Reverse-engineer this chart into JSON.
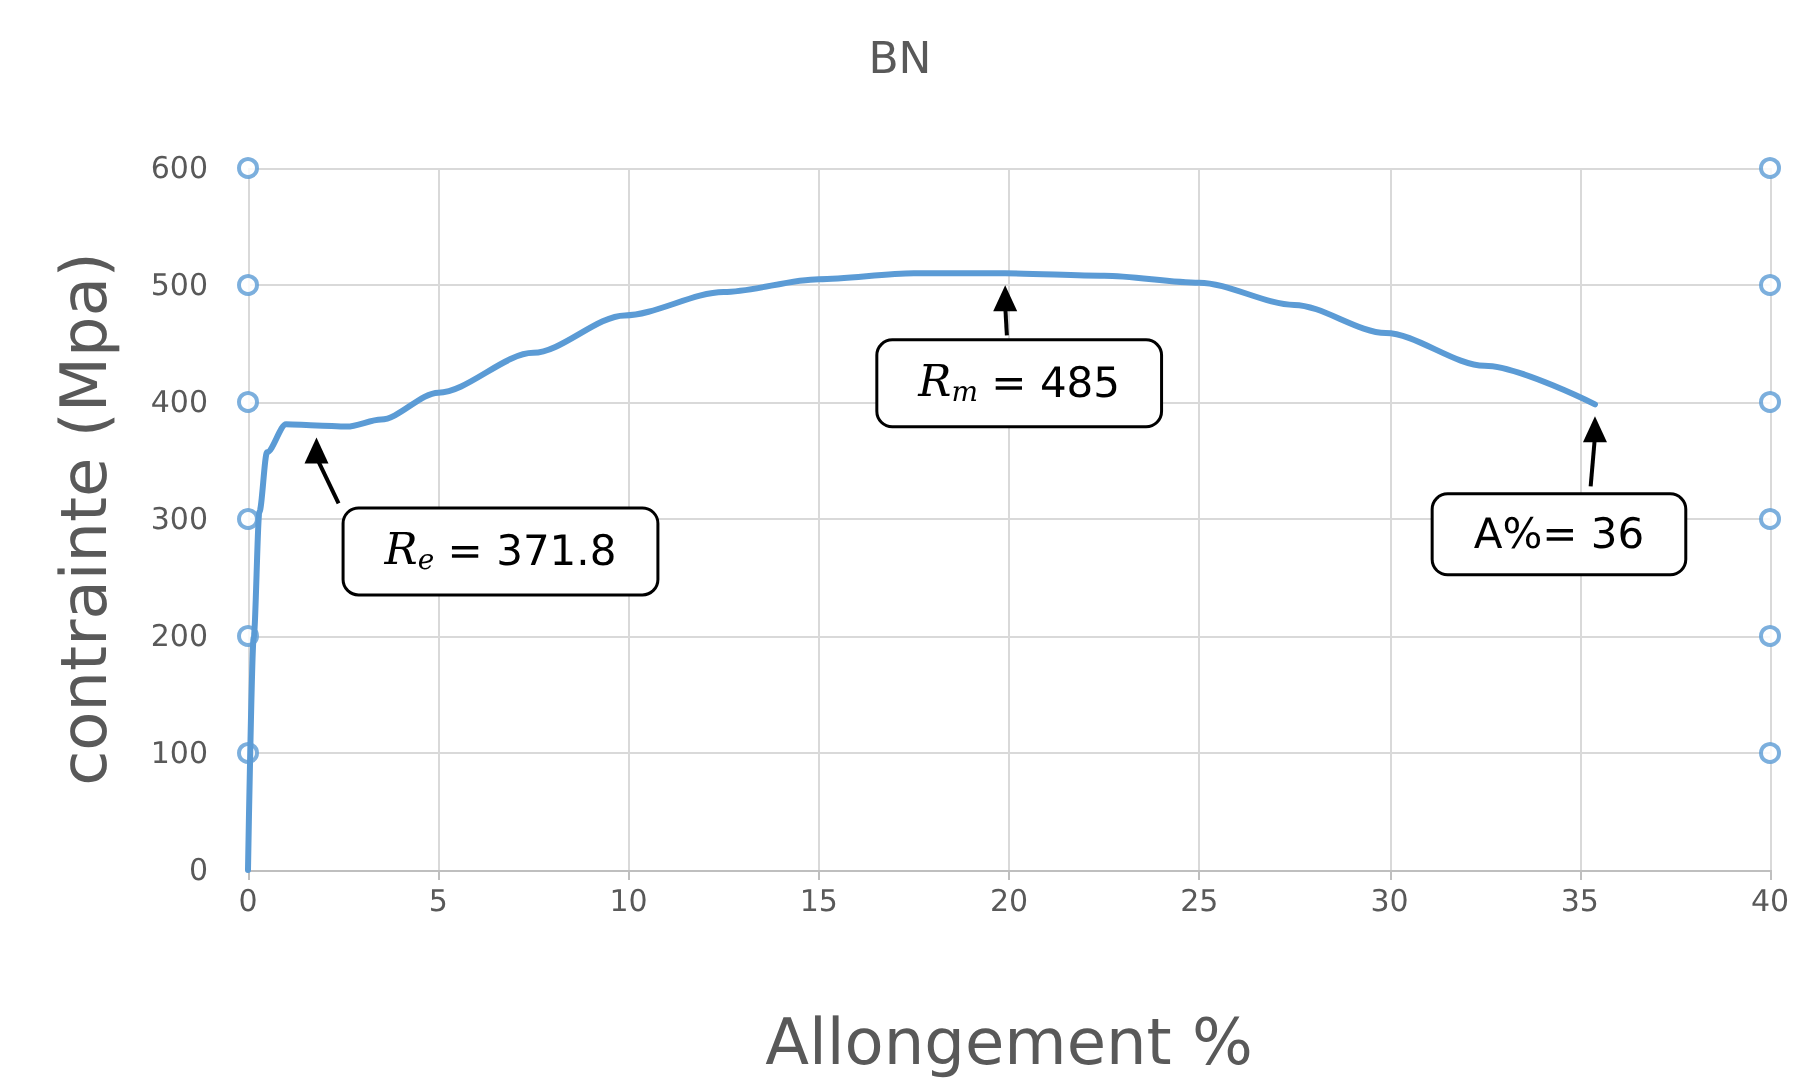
{
  "chart_data": {
    "type": "line",
    "title": "BN",
    "xlabel": "Allongement %",
    "ylabel": "contrainte (Mpa)",
    "xlim": [
      0,
      40
    ],
    "xticks": [
      0,
      5,
      10,
      15,
      20,
      25,
      30,
      35,
      40
    ],
    "ylim": [
      0,
      600
    ],
    "yticks": [
      0,
      100,
      200,
      300,
      400,
      500,
      600
    ],
    "grid": true,
    "line_style": "solid",
    "series": [
      {
        "color": "#5b9bd5",
        "marker": "none",
        "x": [
          0,
          0.15,
          0.3,
          0.5,
          1.0,
          1.8,
          2.6,
          3.5,
          5.0,
          7.5,
          9.9,
          12.5,
          15,
          17.5,
          19.9,
          22.5,
          25,
          27.5,
          29.9,
          32.5,
          35.4
        ],
        "values": [
          0,
          199,
          306,
          357,
          381,
          380,
          379,
          385,
          408,
          442,
          474,
          494,
          505,
          510,
          510,
          508,
          502,
          483,
          459,
          431,
          398
        ]
      },
      {
        "type": "scatter",
        "color": "#5b9bd5",
        "marker": "circle",
        "x": [
          0,
          0,
          0,
          0,
          0,
          0,
          40,
          40,
          40,
          40,
          40,
          40
        ],
        "values": [
          100,
          200,
          300,
          400,
          500,
          600,
          100,
          200,
          300,
          400,
          500,
          600
        ]
      }
    ],
    "annotations": [
      {
        "text": "R$_{e}$ = 371.8",
        "x": 1.8,
        "y": 380
      },
      {
        "text": "R$_{m}$ = 485",
        "x": 19.9,
        "y": 510
      },
      {
        "text": "A%= 36",
        "x": 35.4,
        "y": 398
      }
    ]
  }
}
